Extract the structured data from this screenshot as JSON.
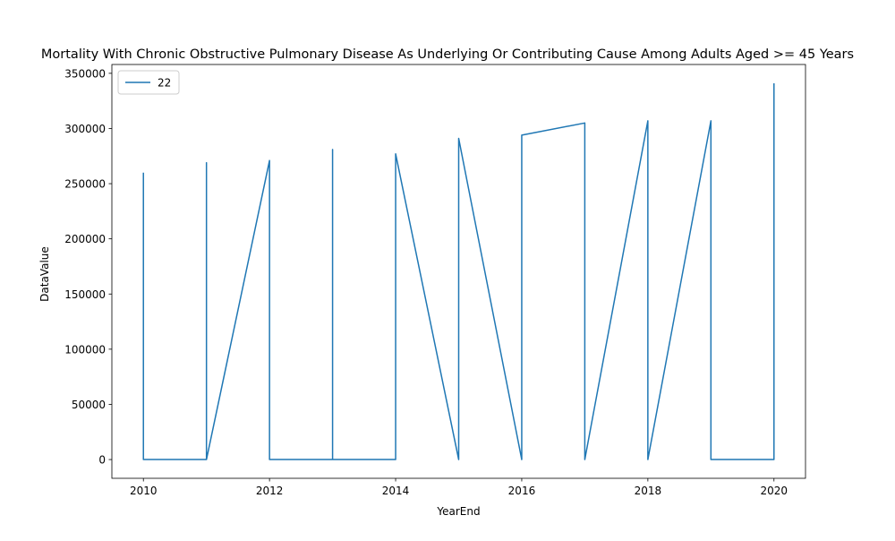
{
  "chart_data": {
    "type": "line",
    "title": "Mortality With Chronic Obstructive Pulmonary Disease As Underlying Or Contributing Cause Among Adults Aged >= 45 Years",
    "xlabel": "YearEnd",
    "ylabel": "DataValue",
    "xlim": [
      2009.5,
      2020.5
    ],
    "ylim": [
      -17000,
      358000
    ],
    "x_ticks": [
      2010,
      2012,
      2014,
      2016,
      2018,
      2020
    ],
    "y_ticks": [
      0,
      50000,
      100000,
      150000,
      200000,
      250000,
      300000,
      350000
    ],
    "grid": false,
    "legend_position": "top-left",
    "series": [
      {
        "name": "22",
        "color": "#1f77b4",
        "x": [
          2010,
          2010,
          2010,
          2011,
          2011,
          2011,
          2012,
          2012,
          2013,
          2013,
          2013,
          2014,
          2014,
          2015,
          2015,
          2016,
          2016,
          2017,
          2017,
          2018,
          2018,
          2019,
          2019,
          2020,
          2020
        ],
        "y": [
          260000,
          0,
          0,
          0,
          269000,
          0,
          271000,
          0,
          0,
          281000,
          0,
          0,
          277000,
          0,
          291000,
          0,
          294000,
          305000,
          0,
          307000,
          0,
          307000,
          0,
          0,
          341000
        ]
      }
    ]
  }
}
